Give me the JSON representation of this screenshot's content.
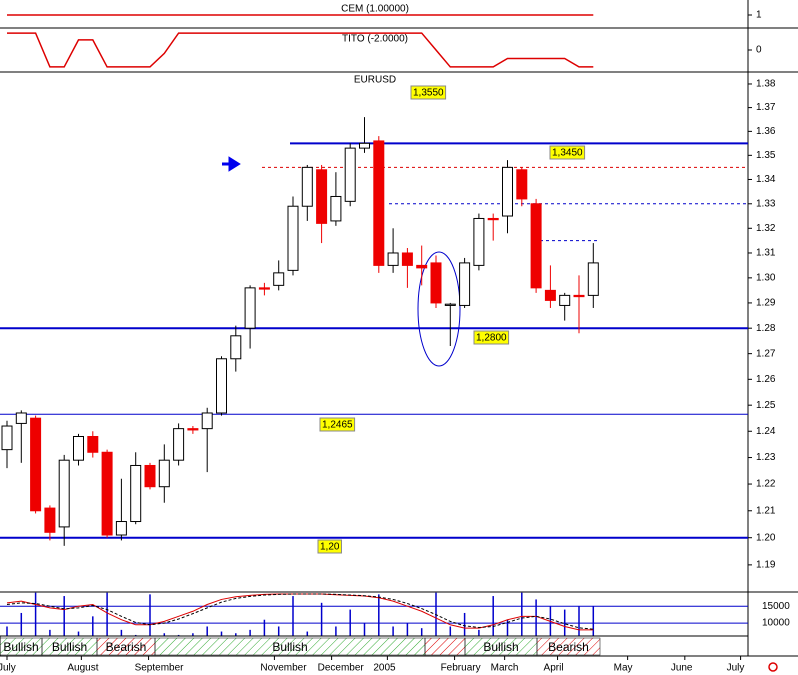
{
  "chart_data": [
    {
      "type": "candlestick",
      "title": "EURUSD",
      "log_scale": true,
      "open": [
        1.233,
        1.243,
        1.245,
        1.211,
        1.204,
        1.229,
        1.238,
        1.232,
        1.201,
        1.206,
        1.227,
        1.219,
        1.229,
        1.241,
        1.241,
        1.247,
        1.268,
        1.28,
        1.296,
        1.297,
        1.303,
        1.329,
        1.344,
        1.323,
        1.331,
        1.353,
        1.356,
        1.305,
        1.31,
        1.305,
        1.306,
        1.289,
        1.289,
        1.305,
        1.324,
        1.325,
        1.344,
        1.33,
        1.295,
        1.289,
        1.293,
        1.293
      ],
      "high": [
        1.244,
        1.248,
        1.246,
        1.212,
        1.231,
        1.239,
        1.24,
        1.233,
        1.222,
        1.232,
        1.228,
        1.235,
        1.243,
        1.242,
        1.249,
        1.269,
        1.281,
        1.297,
        1.298,
        1.307,
        1.333,
        1.346,
        1.346,
        1.343,
        1.355,
        1.366,
        1.358,
        1.32,
        1.312,
        1.313,
        1.309,
        1.29,
        1.308,
        1.326,
        1.326,
        1.348,
        1.345,
        1.332,
        1.305,
        1.294,
        1.301,
        1.314
      ],
      "low": [
        1.226,
        1.228,
        1.209,
        1.199,
        1.197,
        1.227,
        1.23,
        1.2,
        1.199,
        1.205,
        1.218,
        1.213,
        1.227,
        1.239,
        1.2245,
        1.246,
        1.263,
        1.272,
        1.293,
        1.295,
        1.301,
        1.323,
        1.314,
        1.321,
        1.329,
        1.351,
        1.302,
        1.302,
        1.296,
        1.297,
        1.288,
        1.273,
        1.288,
        1.303,
        1.315,
        1.318,
        1.329,
        1.294,
        1.288,
        1.283,
        1.278,
        1.288
      ],
      "close": [
        1.242,
        1.247,
        1.21,
        1.202,
        1.229,
        1.238,
        1.232,
        1.201,
        1.206,
        1.227,
        1.219,
        1.229,
        1.241,
        1.2405,
        1.247,
        1.268,
        1.277,
        1.296,
        1.2955,
        1.302,
        1.329,
        1.345,
        1.322,
        1.333,
        1.353,
        1.355,
        1.305,
        1.31,
        1.305,
        1.304,
        1.29,
        1.2895,
        1.306,
        1.324,
        1.3235,
        1.345,
        1.332,
        1.296,
        1.291,
        1.293,
        1.2925,
        1.306
      ],
      "up_color": "#ffffff",
      "down_color": "#ee0000",
      "ylim": [
        1.1801,
        1.3851
      ],
      "yticks": [
        1.19,
        {
          "value": 1.2,
          "label": "1.20"
        },
        1.21,
        1.22,
        1.23,
        1.24,
        1.25,
        1.26,
        1.27,
        1.28,
        1.29,
        {
          "value": 1.3,
          "label": "1.30"
        },
        1.31,
        1.32,
        1.33,
        1.34,
        1.35,
        1.36,
        1.37,
        1.38
      ],
      "levels": [
        {
          "value": 1.355,
          "label": "1,3550"
        },
        {
          "value": 1.345,
          "label": "1,3450"
        },
        {
          "value": 1.28,
          "label": "1,2800"
        },
        {
          "value": 1.2465,
          "label": "1,2465"
        },
        {
          "value": 1.2,
          "label": "1,20"
        },
        1.33,
        1.315
      ],
      "xticks": [
        {
          "value": 0,
          "label": "July"
        },
        {
          "value": 5.2,
          "label": "August"
        },
        {
          "value": 9.9,
          "label": "September"
        },
        {
          "value": 18.7,
          "label": "November"
        },
        {
          "value": 22.7,
          "label": "December"
        },
        {
          "value": 26.6,
          "label": "2005"
        },
        {
          "value": 31.3,
          "label": "February"
        },
        {
          "value": 34.8,
          "label": "March"
        },
        {
          "value": 38.5,
          "label": "April"
        },
        {
          "value": 43.4,
          "label": "May"
        },
        {
          "value": 47.4,
          "label": "June"
        },
        {
          "value": 51.3,
          "label": "July"
        }
      ]
    },
    {
      "type": "line",
      "title": "CEM (1.00000)",
      "color": "#dd0000",
      "ylim": [
        0,
        2
      ],
      "yticks": [
        1
      ],
      "values": [
        1,
        1,
        1,
        1,
        1,
        1,
        1,
        1,
        1,
        1,
        1,
        1,
        1,
        1,
        1,
        1,
        1,
        1,
        1,
        1,
        1,
        1,
        1,
        1,
        1,
        1,
        1,
        1,
        1,
        1,
        1,
        1,
        1,
        1,
        1,
        1,
        1,
        1,
        1,
        1,
        1,
        1
      ]
    },
    {
      "type": "line",
      "title": "TITO (-2.0000)",
      "color": "#dd0000",
      "ylim": [
        -1.3,
        1.3
      ],
      "yticks": [
        0
      ],
      "values": [
        1,
        1,
        1,
        -1,
        -1,
        0.6,
        0.6,
        -1,
        -1,
        -1,
        -1,
        -0.2,
        1,
        1,
        1,
        1,
        1,
        1,
        1,
        1,
        1,
        1,
        1,
        1,
        1,
        1,
        1,
        1,
        1,
        1,
        0,
        -1,
        -1,
        -1,
        -1,
        -0.5,
        -0.5,
        -0.5,
        -0.5,
        -0.5,
        -1,
        -1
      ]
    },
    {
      "type": "volume",
      "ylim": [
        5000,
        19200
      ],
      "yticks": [
        15000,
        10000
      ],
      "color": "#0000cc",
      "values": [
        9000,
        13000,
        19000,
        8000,
        18000,
        7500,
        12000,
        19000,
        8000,
        6500,
        18500,
        7000,
        6500,
        7000,
        9000,
        7500,
        7000,
        8000,
        11000,
        9000,
        18000,
        7500,
        16000,
        9000,
        14000,
        10000,
        18500,
        9000,
        10000,
        8500,
        19000,
        9000,
        13000,
        8000,
        18000,
        11000,
        19000,
        17000,
        15000,
        14000,
        15000,
        15000
      ],
      "series": [
        {
          "color": "#dd0000",
          "values": [
            16000,
            16500,
            15500,
            14500,
            14000,
            15000,
            15500,
            13000,
            11000,
            9500,
            9500,
            10500,
            12000,
            13500,
            15500,
            17000,
            17800,
            18200,
            18500,
            18600,
            18600,
            18600,
            18600,
            18400,
            18200,
            18000,
            17500,
            16500,
            15000,
            13500,
            11500,
            9500,
            8500,
            8500,
            9500,
            11000,
            12000,
            12000,
            10500,
            9000,
            8000,
            8000
          ]
        },
        {
          "color": "#000000",
          "values": [
            15500,
            16000,
            15800,
            15000,
            14200,
            14500,
            15200,
            14000,
            12000,
            10200,
            9500,
            10000,
            11200,
            12800,
            14500,
            16200,
            17300,
            17900,
            18300,
            18500,
            18600,
            18600,
            18600,
            18500,
            18300,
            18100,
            17700,
            17000,
            15800,
            14300,
            12500,
            10500,
            9200,
            8700,
            9000,
            10200,
            11500,
            12000,
            11200,
            9800,
            8600,
            8200
          ]
        }
      ]
    },
    {
      "type": "regimes",
      "labels": [
        "Bullish",
        "Bullish",
        "Bearish",
        "Bullish",
        null,
        "Bullish",
        "Bearish"
      ],
      "colors": [
        "#33aa33",
        "#33aa33",
        "#dd0000",
        "#33aa33",
        "#dd0000",
        "#33aa33",
        "#dd0000"
      ]
    }
  ]
}
